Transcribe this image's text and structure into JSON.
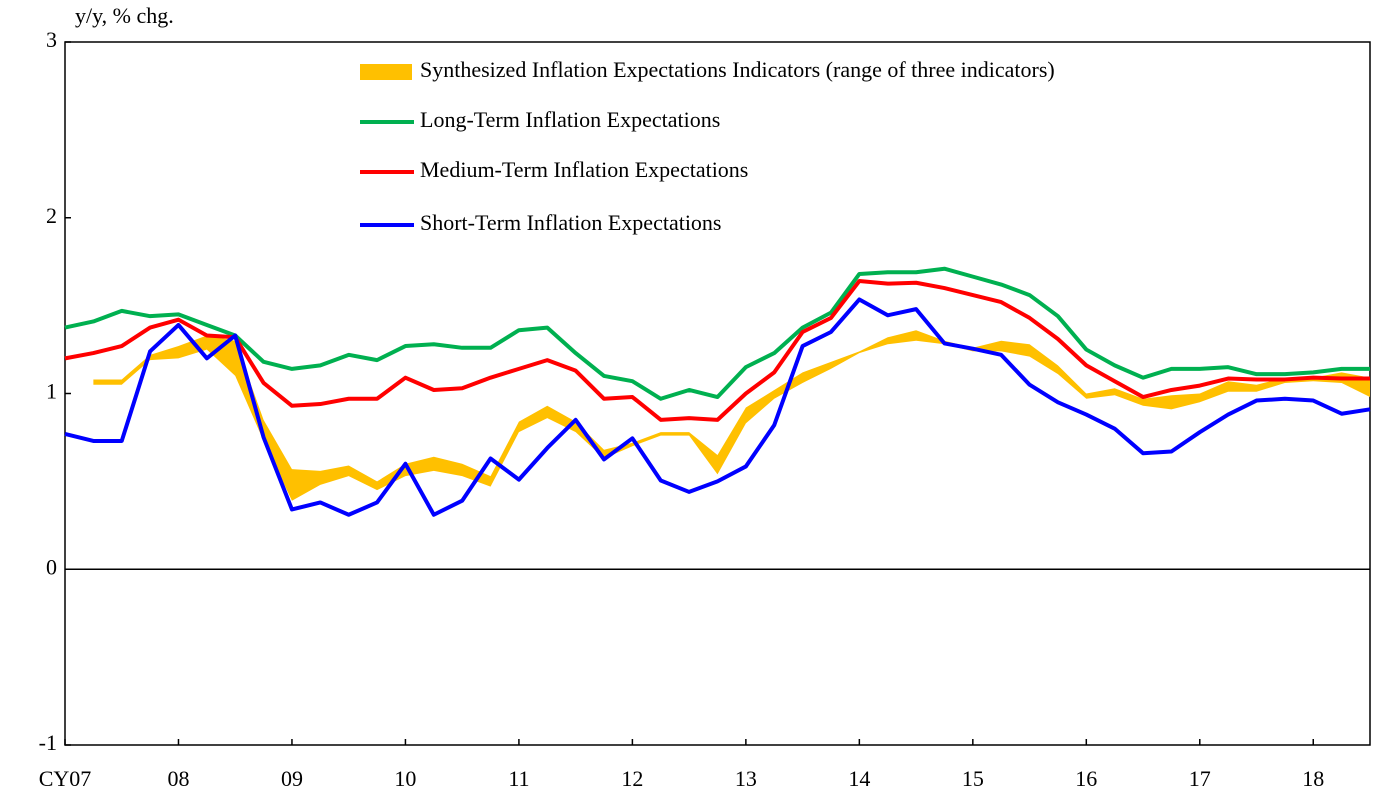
{
  "chart_data": {
    "type": "line",
    "ylabel": "y/y, % chg.",
    "categories": [
      "CY07",
      null,
      null,
      null,
      "08",
      null,
      null,
      null,
      "09",
      null,
      null,
      null,
      "10",
      null,
      null,
      null,
      "11",
      null,
      null,
      null,
      "12",
      null,
      null,
      null,
      "13",
      null,
      null,
      null,
      "14",
      null,
      null,
      null,
      "15",
      null,
      null,
      null,
      "16",
      null,
      null,
      null,
      "17",
      null,
      null,
      null,
      "18",
      null,
      null
    ],
    "ylim": [
      -1,
      3
    ],
    "yticks": [
      -1,
      0,
      1,
      2,
      3
    ],
    "series": [
      {
        "name": "Synthesized Inflation Expectations Indicators (range of three indicators)",
        "color": "#FFC000",
        "low": [
          null,
          1.05,
          1.05,
          1.19,
          1.2,
          1.25,
          1.1,
          0.73,
          0.39,
          0.48,
          0.53,
          0.45,
          0.53,
          0.56,
          0.53,
          0.47,
          0.78,
          0.86,
          0.78,
          0.63,
          0.7,
          0.76,
          0.76,
          0.54,
          0.83,
          0.97,
          1.06,
          1.14,
          1.23,
          1.28,
          1.3,
          1.28,
          1.24,
          1.24,
          1.21,
          1.11,
          0.97,
          0.99,
          0.93,
          0.91,
          0.95,
          1.01,
          1.01,
          1.06,
          1.07,
          1.06,
          0.98
        ],
        "high": [
          null,
          1.08,
          1.08,
          1.22,
          1.27,
          1.33,
          1.3,
          0.85,
          0.57,
          0.56,
          0.59,
          0.5,
          0.6,
          0.64,
          0.6,
          0.53,
          0.84,
          0.93,
          0.84,
          0.68,
          0.72,
          0.78,
          0.78,
          0.65,
          0.92,
          1.02,
          1.12,
          1.18,
          1.24,
          1.32,
          1.36,
          1.3,
          1.26,
          1.3,
          1.28,
          1.16,
          1.0,
          1.03,
          0.97,
          0.99,
          1.0,
          1.07,
          1.05,
          1.09,
          1.09,
          1.12,
          1.09
        ]
      },
      {
        "name": "Long-Term Inflation Expectations",
        "color": "#00B050",
        "values": [
          1.375,
          1.41,
          1.47,
          1.44,
          1.45,
          1.39,
          1.33,
          1.18,
          1.14,
          1.16,
          1.22,
          1.19,
          1.27,
          1.28,
          1.26,
          1.26,
          1.36,
          1.375,
          1.23,
          1.1,
          1.07,
          0.97,
          1.02,
          0.98,
          1.15,
          1.23,
          1.375,
          1.46,
          1.68,
          1.69,
          1.69,
          1.71,
          1.665,
          1.62,
          1.56,
          1.44,
          1.25,
          1.16,
          1.09,
          1.14,
          1.14,
          1.15,
          1.11,
          1.11,
          1.12,
          1.14,
          1.14
        ]
      },
      {
        "name": "Medium-Term Inflation Expectations",
        "color": "#FF0000",
        "values": [
          1.2,
          1.23,
          1.27,
          1.375,
          1.42,
          1.33,
          1.32,
          1.06,
          0.93,
          0.94,
          0.97,
          0.97,
          1.09,
          1.02,
          1.03,
          1.09,
          1.14,
          1.19,
          1.13,
          0.97,
          0.98,
          0.85,
          0.86,
          0.85,
          1.0,
          1.12,
          1.35,
          1.43,
          1.64,
          1.625,
          1.63,
          1.6,
          1.56,
          1.52,
          1.43,
          1.31,
          1.16,
          1.07,
          0.98,
          1.02,
          1.045,
          1.085,
          1.08,
          1.08,
          1.09,
          1.085,
          1.085
        ]
      },
      {
        "name": "Short-Term Inflation Expectations",
        "color": "#0000FF",
        "values": [
          0.77,
          0.73,
          0.73,
          1.24,
          1.39,
          1.2,
          1.33,
          0.75,
          0.34,
          0.38,
          0.31,
          0.38,
          0.6,
          0.31,
          0.39,
          0.63,
          0.51,
          0.69,
          0.85,
          0.625,
          0.745,
          0.505,
          0.44,
          0.5,
          0.585,
          0.82,
          1.27,
          1.35,
          1.535,
          1.445,
          1.48,
          1.285,
          1.255,
          1.22,
          1.05,
          0.95,
          0.88,
          0.8,
          0.66,
          0.67,
          0.78,
          0.88,
          0.96,
          0.97,
          0.96,
          0.885,
          0.91
        ]
      }
    ]
  }
}
